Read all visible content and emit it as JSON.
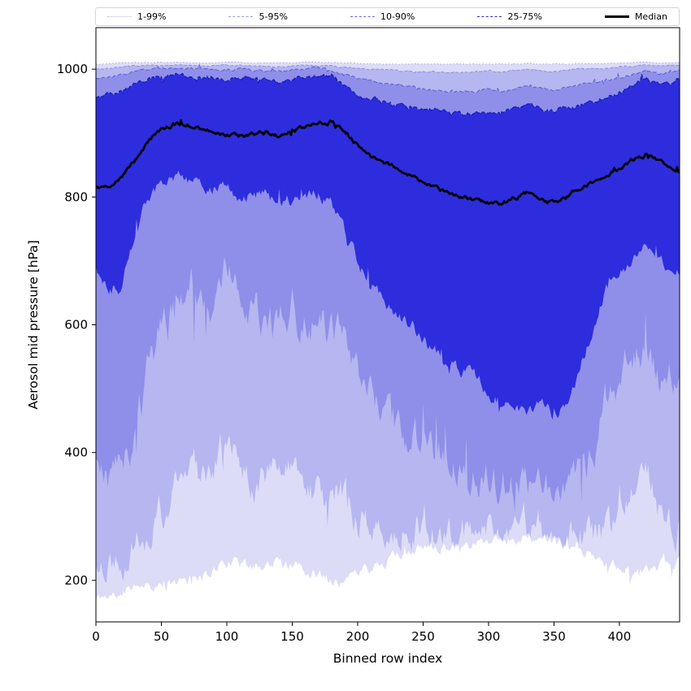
{
  "chart_data": {
    "type": "area",
    "subtype": "percentile-fan-chart",
    "title": "",
    "xlabel": "Binned row index",
    "ylabel": "Aerosol mid pressure [hPa]",
    "xlim": [
      0,
      446
    ],
    "ylim": [
      135,
      1065
    ],
    "xticks": [
      0,
      50,
      100,
      150,
      200,
      250,
      300,
      350,
      400
    ],
    "yticks": [
      200,
      400,
      600,
      800,
      1000
    ],
    "grid": false,
    "legend_position": "top",
    "x": [
      0,
      10,
      20,
      30,
      40,
      50,
      60,
      70,
      80,
      90,
      100,
      110,
      120,
      130,
      140,
      150,
      160,
      170,
      180,
      190,
      200,
      210,
      220,
      230,
      240,
      250,
      260,
      270,
      280,
      290,
      300,
      310,
      320,
      330,
      340,
      350,
      360,
      370,
      380,
      390,
      400,
      410,
      420,
      430,
      440,
      445
    ],
    "percentiles": {
      "p01": [
        172,
        176,
        182,
        200,
        196,
        190,
        196,
        202,
        210,
        220,
        230,
        226,
        220,
        226,
        230,
        220,
        215,
        210,
        205,
        200,
        210,
        220,
        230,
        240,
        246,
        250,
        254,
        256,
        258,
        260,
        264,
        266,
        268,
        266,
        262,
        260,
        256,
        250,
        240,
        230,
        220,
        216,
        220,
        226,
        230,
        230
      ],
      "p05": [
        222,
        232,
        242,
        262,
        282,
        302,
        332,
        362,
        382,
        392,
        420,
        382,
        362,
        372,
        382,
        362,
        342,
        332,
        330,
        322,
        302,
        292,
        286,
        281,
        278,
        275,
        272,
        270,
        272,
        275,
        278,
        280,
        285,
        282,
        278,
        275,
        272,
        270,
        268,
        272,
        282,
        330,
        380,
        322,
        292,
        286
      ],
      "p10": [
        385,
        358,
        380,
        430,
        520,
        600,
        640,
        660,
        650,
        640,
        700,
        640,
        620,
        610,
        600,
        620,
        610,
        600,
        590,
        560,
        520,
        480,
        452,
        432,
        420,
        410,
        400,
        390,
        380,
        370,
        360,
        350,
        356,
        350,
        344,
        340,
        346,
        360,
        400,
        480,
        520,
        560,
        570,
        520,
        540,
        530
      ],
      "p25": [
        688,
        645,
        662,
        748,
        800,
        820,
        830,
        826,
        820,
        815,
        810,
        800,
        805,
        800,
        790,
        795,
        800,
        806,
        790,
        750,
        700,
        662,
        640,
        620,
        600,
        580,
        560,
        545,
        530,
        515,
        498,
        480,
        470,
        465,
        470,
        460,
        480,
        530,
        600,
        660,
        680,
        700,
        720,
        700,
        690,
        686
      ],
      "median": [
        815,
        818,
        832,
        858,
        888,
        905,
        915,
        912,
        906,
        900,
        898,
        895,
        897,
        900,
        895,
        904,
        910,
        915,
        918,
        905,
        880,
        862,
        853,
        845,
        835,
        824,
        815,
        806,
        800,
        795,
        790,
        788,
        799,
        806,
        795,
        790,
        800,
        814,
        824,
        835,
        845,
        856,
        866,
        855,
        845,
        840
      ],
      "p75": [
        958,
        962,
        966,
        976,
        986,
        990,
        992,
        990,
        988,
        986,
        985,
        988,
        985,
        982,
        980,
        985,
        988,
        992,
        990,
        975,
        960,
        950,
        948,
        944,
        940,
        938,
        935,
        932,
        930,
        932,
        935,
        930,
        940,
        945,
        938,
        935,
        940,
        945,
        950,
        955,
        962,
        975,
        985,
        975,
        980,
        985
      ],
      "p90": [
        985,
        988,
        992,
        998,
        1001,
        1002,
        1002,
        1001,
        1000,
        999,
        1000,
        1000,
        998,
        997,
        996,
        998,
        1000,
        1001,
        998,
        992,
        986,
        981,
        978,
        975,
        972,
        970,
        968,
        965,
        963,
        965,
        968,
        962,
        970,
        975,
        970,
        968,
        972,
        975,
        978,
        982,
        986,
        992,
        998,
        993,
        996,
        998
      ],
      "p95": [
        1000,
        1002,
        1004,
        1005,
        1006,
        1006,
        1006,
        1006,
        1005,
        1005,
        1006,
        1006,
        1005,
        1005,
        1004,
        1005,
        1006,
        1006,
        1005,
        1003,
        1001,
        1000,
        999,
        998,
        997,
        996,
        996,
        995,
        995,
        996,
        997,
        995,
        998,
        1000,
        998,
        997,
        999,
        1000,
        1001,
        1002,
        1004,
        1005,
        1006,
        1005,
        1006,
        1006
      ],
      "p99": [
        1008,
        1009,
        1010,
        1010,
        1010,
        1011,
        1011,
        1010,
        1010,
        1010,
        1011,
        1011,
        1010,
        1010,
        1010,
        1010,
        1011,
        1011,
        1010,
        1010,
        1009,
        1009,
        1008,
        1008,
        1008,
        1008,
        1008,
        1008,
        1008,
        1008,
        1008,
        1008,
        1008,
        1009,
        1008,
        1008,
        1008,
        1009,
        1009,
        1009,
        1010,
        1010,
        1011,
        1010,
        1010,
        1010
      ]
    },
    "noise_amplitude_hpa": {
      "p01": 14,
      "p05": 42,
      "p10": 45,
      "p25": 16,
      "median": 5,
      "p75": 5,
      "p90": 3,
      "p95": 1.5,
      "p99": 0.8
    },
    "bands": [
      {
        "label": "1-99%",
        "lower": "p01",
        "upper": "p99",
        "fill": "#dcdcf7",
        "edge": "#a0a0dc",
        "dash": "1.5 2.5",
        "edge_width": 0.9
      },
      {
        "label": "5-95%",
        "lower": "p05",
        "upper": "p95",
        "fill": "#b6b6f0",
        "edge": "#8a8ae2",
        "dash": "4 2",
        "edge_width": 0.9
      },
      {
        "label": "10-90%",
        "lower": "p10",
        "upper": "p90",
        "fill": "#8f8fe9",
        "edge": "#5c5cd8",
        "dash": "5 2.5",
        "edge_width": 1.0
      },
      {
        "label": "25-75%",
        "lower": "p25",
        "upper": "p75",
        "fill": "#2d2ddd",
        "edge": "#1818b8",
        "dash": "5 2.5",
        "edge_width": 1.2
      }
    ],
    "median_line": {
      "label": "Median",
      "series": "median",
      "color": "#000000",
      "width": 2.8
    },
    "legend": [
      {
        "label": "1-99%",
        "style": "dotted",
        "color": "#b9b9e2"
      },
      {
        "label": "5-95%",
        "style": "dashed",
        "color": "#9a9ae6"
      },
      {
        "label": "10-90%",
        "style": "dashed",
        "color": "#6a6ade"
      },
      {
        "label": "25-75%",
        "style": "dashed",
        "color": "#2d2dc4"
      },
      {
        "label": "Median",
        "style": "solid",
        "color": "#000000"
      }
    ]
  }
}
